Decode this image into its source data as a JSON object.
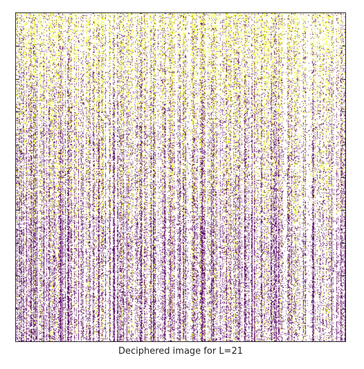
{
  "figure": {
    "xlabel": "Deciphered image for L=21"
  },
  "image": {
    "description_colors": {
      "dark": "#5b0a66",
      "light": "#e6f500",
      "background": "#ffffff"
    },
    "axis_color": "#262626"
  }
}
